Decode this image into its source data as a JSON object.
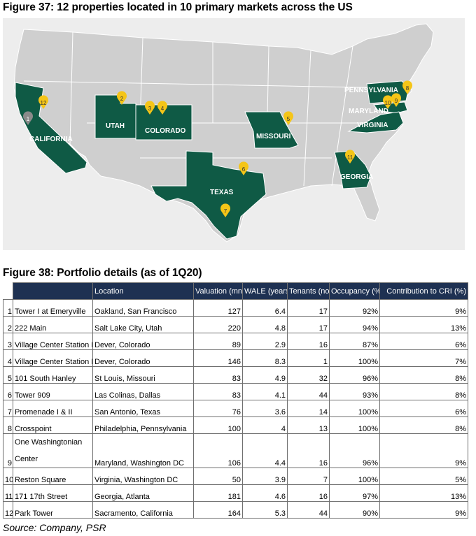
{
  "figure37": {
    "title": "Figure 37: 12 properties located in 10 primary markets across the US",
    "colors": {
      "background": "#ededed",
      "land": "#cfcfcf",
      "highlight": "#0f5a45",
      "marker": "#f5c518",
      "marker_gray": "#8a8a8a",
      "border": "#ffffff"
    },
    "state_labels": [
      "CALIFORNIA",
      "UTAH",
      "COLORADO",
      "TEXAS",
      "MISSOURI",
      "GEORGIA",
      "PENNSYLVANIA",
      "MARYLAND",
      "VIRGINIA"
    ],
    "markers": [
      "1",
      "2",
      "3",
      "4",
      "5",
      "6",
      "7",
      "8",
      "9",
      "10",
      "11",
      "12"
    ]
  },
  "figure38": {
    "title": "Figure 38: Portfolio details (as of 1Q20)",
    "columns": [
      "Location",
      "Valuation (mn)",
      "WALE (years)",
      "Tenants (no)",
      "Occupancy (%)",
      "Contribution to CRI (%)"
    ],
    "rows": [
      {
        "no": "1",
        "property": "Tower I at Emeryville",
        "location": "Oakland, San Francisco",
        "valuation": "127",
        "wale": "6.4",
        "tenants": "17",
        "occupancy": "92%",
        "cri": "9%"
      },
      {
        "no": "2",
        "property": "222 Main",
        "location": "Salt Lake City, Utah",
        "valuation": "220",
        "wale": "4.8",
        "tenants": "17",
        "occupancy": "94%",
        "cri": "13%"
      },
      {
        "no": "3",
        "property": "Village Center Station I",
        "location": "Dever, Colorado",
        "valuation": "89",
        "wale": "2.9",
        "tenants": "16",
        "occupancy": "87%",
        "cri": "6%"
      },
      {
        "no": "4",
        "property": "Village Center Station II",
        "location": "Dever, Colorado",
        "valuation": "146",
        "wale": "8.3",
        "tenants": "1",
        "occupancy": "100%",
        "cri": "7%"
      },
      {
        "no": "5",
        "property": "101 South Hanley",
        "location": "St Louis, Missouri",
        "valuation": "83",
        "wale": "4.9",
        "tenants": "32",
        "occupancy": "96%",
        "cri": "8%"
      },
      {
        "no": "6",
        "property": "Tower 909",
        "location": "Las Colinas, Dallas",
        "valuation": "83",
        "wale": "4.1",
        "tenants": "44",
        "occupancy": "93%",
        "cri": "8%"
      },
      {
        "no": "7",
        "property": "Promenade I & II",
        "location": "San Antonio, Texas",
        "valuation": "76",
        "wale": "3.6",
        "tenants": "14",
        "occupancy": "100%",
        "cri": "6%"
      },
      {
        "no": "8",
        "property": "Crosspoint",
        "location": "Philadelphia, Pennsylvania",
        "valuation": "100",
        "wale": "4",
        "tenants": "13",
        "occupancy": "100%",
        "cri": "8%"
      },
      {
        "no": "9",
        "property": "One Washingtonian Center",
        "location": "Maryland, Washington DC",
        "valuation": "106",
        "wale": "4.4",
        "tenants": "16",
        "occupancy": "96%",
        "cri": "9%"
      },
      {
        "no": "10",
        "property": "Reston Square",
        "location": "Virginia, Washington DC",
        "valuation": "50",
        "wale": "3.9",
        "tenants": "7",
        "occupancy": "100%",
        "cri": "5%"
      },
      {
        "no": "11",
        "property": "171 17th Street",
        "location": "Georgia, Atlanta",
        "valuation": "181",
        "wale": "4.6",
        "tenants": "16",
        "occupancy": "97%",
        "cri": "13%"
      },
      {
        "no": "12",
        "property": "Park Tower",
        "location": "Sacramento, California",
        "valuation": "164",
        "wale": "5.3",
        "tenants": "44",
        "occupancy": "90%",
        "cri": "9%"
      }
    ]
  },
  "source": "Source: Company, PSR"
}
